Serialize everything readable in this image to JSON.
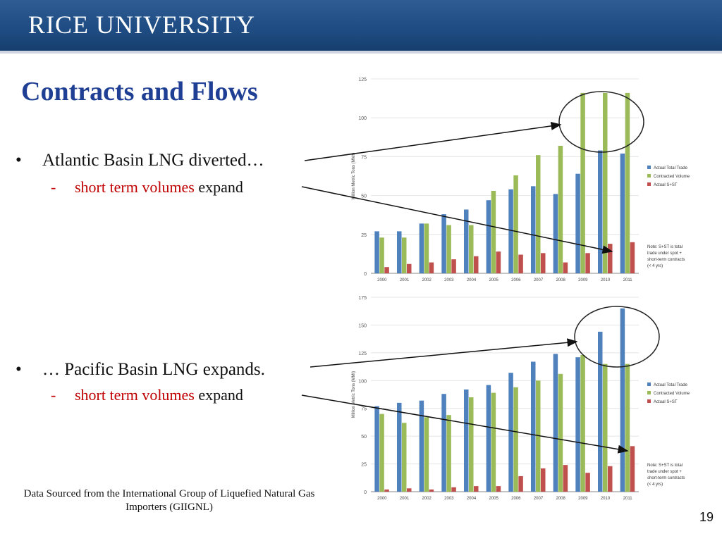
{
  "header": {
    "title": "RICE UNIVERSITY"
  },
  "slide": {
    "title": "Contracts and Flows",
    "bullets": [
      {
        "text": "Atlantic Basin LNG diverted…",
        "sub": {
          "red": "short term volumes",
          "rest": "expand"
        }
      },
      {
        "text": "… Pacific Basin LNG expands.",
        "sub": {
          "red": "short term volumes",
          "rest": "expand"
        }
      }
    ],
    "source": "Data Sourced from the International Group of Liquefied Natural Gas Importers (GIIGNL)",
    "page_number": "19"
  },
  "colors": {
    "actual_total": "#4f81bd",
    "contracted": "#9bbb59",
    "actual_sst": "#c0504d",
    "title": "#1f3f94",
    "header": "#1e4c82"
  },
  "chart_data": [
    {
      "type": "bar",
      "ylabel": "Million Metric Tons (MMt)",
      "ylim": [
        0,
        125
      ],
      "yticks": [
        0,
        25,
        50,
        75,
        100,
        125
      ],
      "categories": [
        "2000",
        "2001",
        "2002",
        "2003",
        "2004",
        "2005",
        "2006",
        "2007",
        "2008",
        "2009",
        "2010",
        "2011"
      ],
      "series": [
        {
          "name": "Actual Total Trade",
          "color": "#4f81bd",
          "values": [
            27,
            27,
            32,
            38,
            41,
            47,
            54,
            56,
            51,
            64,
            79,
            77
          ]
        },
        {
          "name": "Contracted Volume",
          "color": "#9bbb59",
          "values": [
            23,
            23,
            32,
            31,
            31,
            53,
            63,
            76,
            82,
            116,
            116,
            116
          ]
        },
        {
          "name": "Actual S+ST",
          "color": "#c0504d",
          "values": [
            4,
            6,
            7,
            9,
            11,
            14,
            12,
            13,
            7,
            13,
            19,
            20
          ]
        }
      ],
      "legend": "right",
      "note": "Note: S+ST is total trade under spot + short-term contracts (< 4 yrs)"
    },
    {
      "type": "bar",
      "ylabel": "Million Metric Tons (MMt)",
      "ylim": [
        0,
        175
      ],
      "yticks": [
        0,
        25,
        50,
        75,
        100,
        125,
        150,
        175
      ],
      "categories": [
        "2000",
        "2001",
        "2002",
        "2003",
        "2004",
        "2005",
        "2006",
        "2007",
        "2008",
        "2009",
        "2010",
        "2011"
      ],
      "series": [
        {
          "name": "Actual Total Trade",
          "color": "#4f81bd",
          "values": [
            77,
            80,
            82,
            88,
            92,
            96,
            107,
            117,
            124,
            121,
            144,
            165
          ]
        },
        {
          "name": "Contracted Volume",
          "color": "#9bbb59",
          "values": [
            70,
            62,
            67,
            69,
            85,
            89,
            94,
            100,
            106,
            123,
            115,
            115
          ]
        },
        {
          "name": "Actual S+ST",
          "color": "#c0504d",
          "values": [
            2,
            3,
            2,
            4,
            5,
            5,
            14,
            21,
            24,
            17,
            23,
            41
          ]
        }
      ],
      "legend": "right",
      "note": "Note: S+ST is total trade under spot + short-term contracts (< 4 yrs)"
    }
  ]
}
